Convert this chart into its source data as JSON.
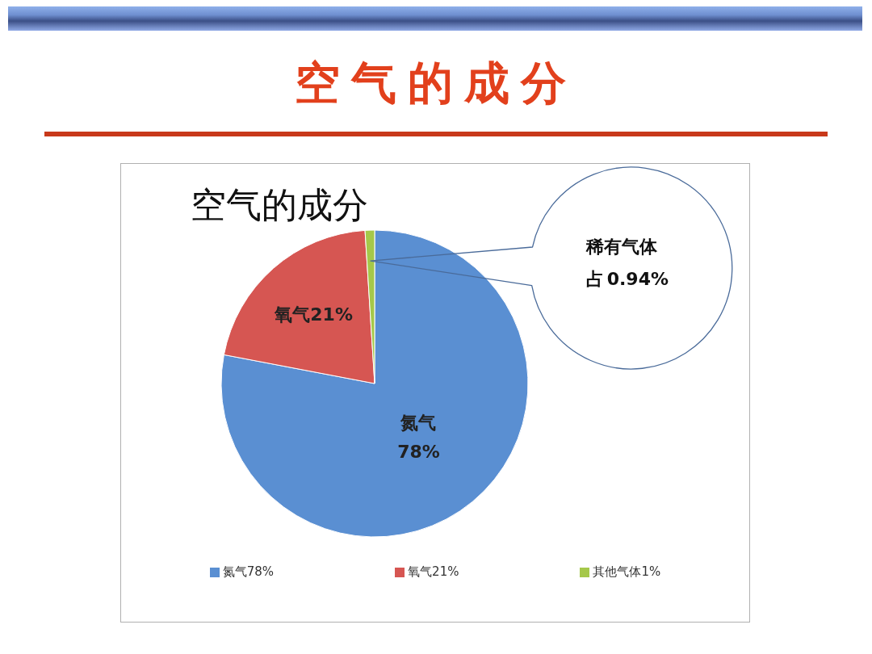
{
  "chart_data": {
    "type": "pie",
    "title": "空气的成分",
    "subtitle": "空气的成分",
    "categories": [
      "氮气78%",
      "氧气21%",
      "其他气体1%"
    ],
    "values": [
      78,
      21,
      1
    ],
    "colors": [
      "#5a8fd2",
      "#d65652",
      "#a5c84a"
    ],
    "value_labels": [
      "氮气\n78%",
      "氧气21%",
      null
    ],
    "annotations": [
      "稀有气体占 0.94%"
    ],
    "legend": "bottom"
  }
}
